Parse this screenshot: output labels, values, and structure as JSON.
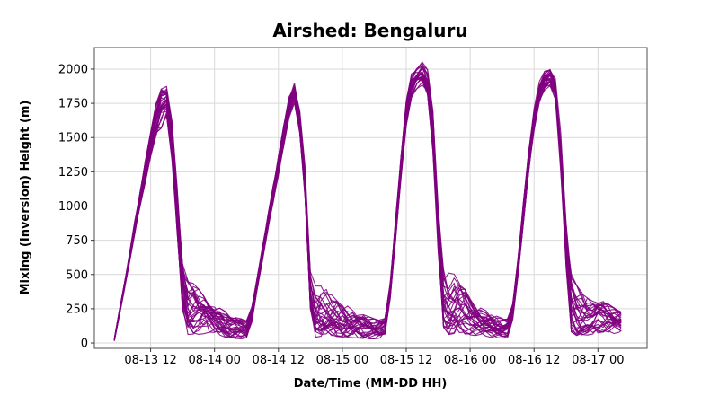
{
  "window": {
    "background": "#ffffff"
  },
  "chart_data": {
    "type": "line",
    "subtype": "ensemble-spaghetti",
    "title": "Airshed: Bengaluru",
    "xlabel": "Date/Time (MM-DD HH)",
    "ylabel": "Mixing (Inversion) Height (m)",
    "x_tick_labels": [
      "08-13 12",
      "08-14 00",
      "08-14 12",
      "08-15 00",
      "08-15 12",
      "08-16 00",
      "08-16 12",
      "08-17 00"
    ],
    "x_tick_hours": [
      12,
      24,
      36,
      48,
      60,
      72,
      84,
      96
    ],
    "hours_offset_from": "08-13 00",
    "y_ticks": [
      0,
      250,
      500,
      750,
      1000,
      1250,
      1500,
      1750,
      2000
    ],
    "xlim_hours": [
      1.44,
      105.23
    ],
    "ylim": [
      -39,
      2157
    ],
    "grid": true,
    "legend": "none",
    "n_members": 30,
    "line_color": "#800080",
    "line_width": 1.1,
    "line_opacity": 0.88,
    "daily_peaks_m": {
      "08-13": 1905,
      "08-14": 1910,
      "08-15": 2055,
      "08-16": 2025
    },
    "ensemble_envelope": {
      "description": "Estimated median and min/max envelope of the ~30 overlapping purple ensemble traces, read off the plot. Hours are offsets from 08-13 00:00.",
      "hours": [
        5.2,
        6,
        7,
        8,
        9,
        10,
        11,
        12,
        13,
        14,
        14.8,
        15.5,
        16.5,
        17.5,
        18.3,
        19.5,
        20.5,
        22,
        23,
        24,
        26,
        28,
        30,
        30.5,
        32,
        34,
        36,
        37,
        38,
        38.9,
        39.6,
        40.9,
        41.5,
        42.3,
        43.4,
        44.5,
        46.2,
        48,
        50,
        52,
        54,
        55.8,
        56.5,
        57.5,
        58.5,
        59.5,
        60.5,
        61.5,
        63,
        64,
        65,
        66,
        66.9,
        68,
        69.5,
        71,
        72,
        74,
        76,
        78,
        79.5,
        80.5,
        81.5,
        82.5,
        83.5,
        84.5,
        85.5,
        86.9,
        88,
        89,
        90,
        90.9,
        92,
        93.5,
        95,
        96.3,
        97.5,
        99,
        100.3
      ],
      "median": [
        25,
        190,
        400,
        615,
        830,
        1040,
        1250,
        1460,
        1640,
        1790,
        1830,
        1700,
        1250,
        650,
        250,
        190,
        210,
        250,
        210,
        175,
        150,
        120,
        100,
        105,
        430,
        860,
        1295,
        1510,
        1725,
        1840,
        1780,
        1270,
        615,
        150,
        180,
        200,
        180,
        150,
        130,
        110,
        95,
        100,
        160,
        600,
        1050,
        1530,
        1840,
        1930,
        1970,
        1900,
        1550,
        800,
        300,
        230,
        250,
        210,
        185,
        145,
        115,
        100,
        105,
        350,
        750,
        1150,
        1500,
        1760,
        1900,
        1950,
        1850,
        1400,
        700,
        280,
        190,
        170,
        190,
        225,
        215,
        175,
        150
      ],
      "lower": [
        18,
        170,
        370,
        580,
        780,
        980,
        1170,
        1360,
        1500,
        1560,
        1700,
        1560,
        1100,
        480,
        60,
        40,
        55,
        60,
        50,
        45,
        38,
        30,
        25,
        28,
        390,
        800,
        1220,
        1430,
        1640,
        1760,
        1700,
        1150,
        480,
        40,
        35,
        50,
        45,
        40,
        35,
        30,
        28,
        30,
        120,
        520,
        960,
        1430,
        1740,
        1840,
        1880,
        1800,
        1400,
        650,
        80,
        55,
        65,
        60,
        55,
        45,
        38,
        32,
        35,
        300,
        680,
        1070,
        1410,
        1680,
        1830,
        1870,
        1750,
        1250,
        550,
        75,
        50,
        50,
        60,
        70,
        75,
        65,
        55
      ],
      "upper": [
        35,
        215,
        430,
        660,
        890,
        1100,
        1330,
        1540,
        1750,
        1880,
        1905,
        1830,
        1420,
        850,
        470,
        460,
        430,
        345,
        300,
        280,
        235,
        195,
        165,
        160,
        480,
        930,
        1370,
        1590,
        1800,
        1910,
        1860,
        1400,
        780,
        420,
        430,
        420,
        350,
        300,
        250,
        210,
        180,
        170,
        210,
        690,
        1140,
        1620,
        1930,
        2010,
        2055,
        2000,
        1700,
        1000,
        560,
        540,
        500,
        400,
        330,
        265,
        215,
        185,
        175,
        420,
        830,
        1240,
        1590,
        1850,
        1975,
        2025,
        1950,
        1550,
        900,
        520,
        430,
        350,
        310,
        318,
        300,
        260,
        230
      ]
    }
  },
  "colors": {
    "line": "#800080",
    "grid": "#d9d9d9",
    "spine": "#4d4d4d",
    "tick": "#333333",
    "text": "#000000",
    "background": "#ffffff"
  }
}
